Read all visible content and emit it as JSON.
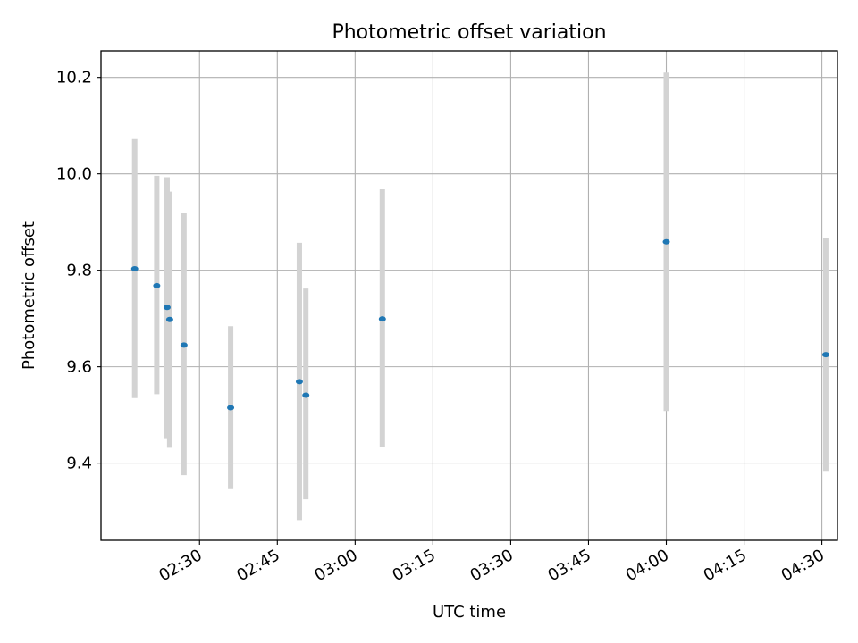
{
  "chart_data": {
    "type": "scatter",
    "title": "Photometric offset variation",
    "xlabel": "UTC time",
    "ylabel": "Photometric offset",
    "xlim": [
      "02:11",
      "04:33"
    ],
    "ylim": [
      9.24,
      10.255
    ],
    "x_ticks": [
      "02:30",
      "02:45",
      "03:00",
      "03:15",
      "03:30",
      "03:45",
      "04:00",
      "04:15",
      "04:30"
    ],
    "y_ticks": [
      9.4,
      9.6,
      9.8,
      10.0,
      10.2
    ],
    "y_tick_labels": [
      "9.4",
      "9.6",
      "9.8",
      "10.0",
      "10.2"
    ],
    "grid": true,
    "marker_color": "#1f77b4",
    "errorbar_color": "#d3d3d3",
    "points": [
      {
        "x": "02:17:30",
        "y": 9.803,
        "low": 9.535,
        "high": 10.072
      },
      {
        "x": "02:21:45",
        "y": 9.768,
        "low": 9.543,
        "high": 9.996
      },
      {
        "x": "02:23:45",
        "y": 9.723,
        "low": 9.45,
        "high": 9.993
      },
      {
        "x": "02:24:15",
        "y": 9.698,
        "low": 9.432,
        "high": 9.963
      },
      {
        "x": "02:27:00",
        "y": 9.645,
        "low": 9.375,
        "high": 9.918
      },
      {
        "x": "02:36:00",
        "y": 9.515,
        "low": 9.348,
        "high": 9.684
      },
      {
        "x": "02:49:15",
        "y": 9.569,
        "low": 9.282,
        "high": 9.857
      },
      {
        "x": "02:50:30",
        "y": 9.541,
        "low": 9.325,
        "high": 9.762
      },
      {
        "x": "03:05:15",
        "y": 9.699,
        "low": 9.433,
        "high": 9.968
      },
      {
        "x": "04:00:00",
        "y": 9.859,
        "low": 9.508,
        "high": 10.21
      },
      {
        "x": "04:30:45",
        "y": 9.625,
        "low": 9.384,
        "high": 9.868
      }
    ]
  }
}
